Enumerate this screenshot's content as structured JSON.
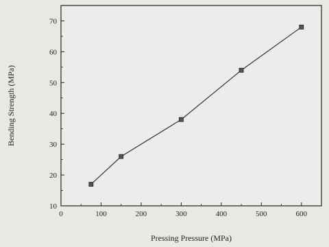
{
  "chart_data": {
    "type": "line",
    "title": "",
    "xlabel": "Pressing Pressure (MPa)",
    "ylabel": "Bending Strength (MPa)",
    "xlim": [
      0,
      650
    ],
    "ylim": [
      10,
      75
    ],
    "xticks": [
      0,
      100,
      200,
      300,
      400,
      500,
      600
    ],
    "yticks": [
      10,
      20,
      30,
      40,
      50,
      60,
      70
    ],
    "grid": false,
    "legend": "none",
    "marker": "square",
    "series": [
      {
        "color": "#333333",
        "x": [
          75,
          150,
          300,
          450,
          600
        ],
        "y": [
          17,
          26,
          38,
          54,
          68
        ]
      }
    ]
  }
}
